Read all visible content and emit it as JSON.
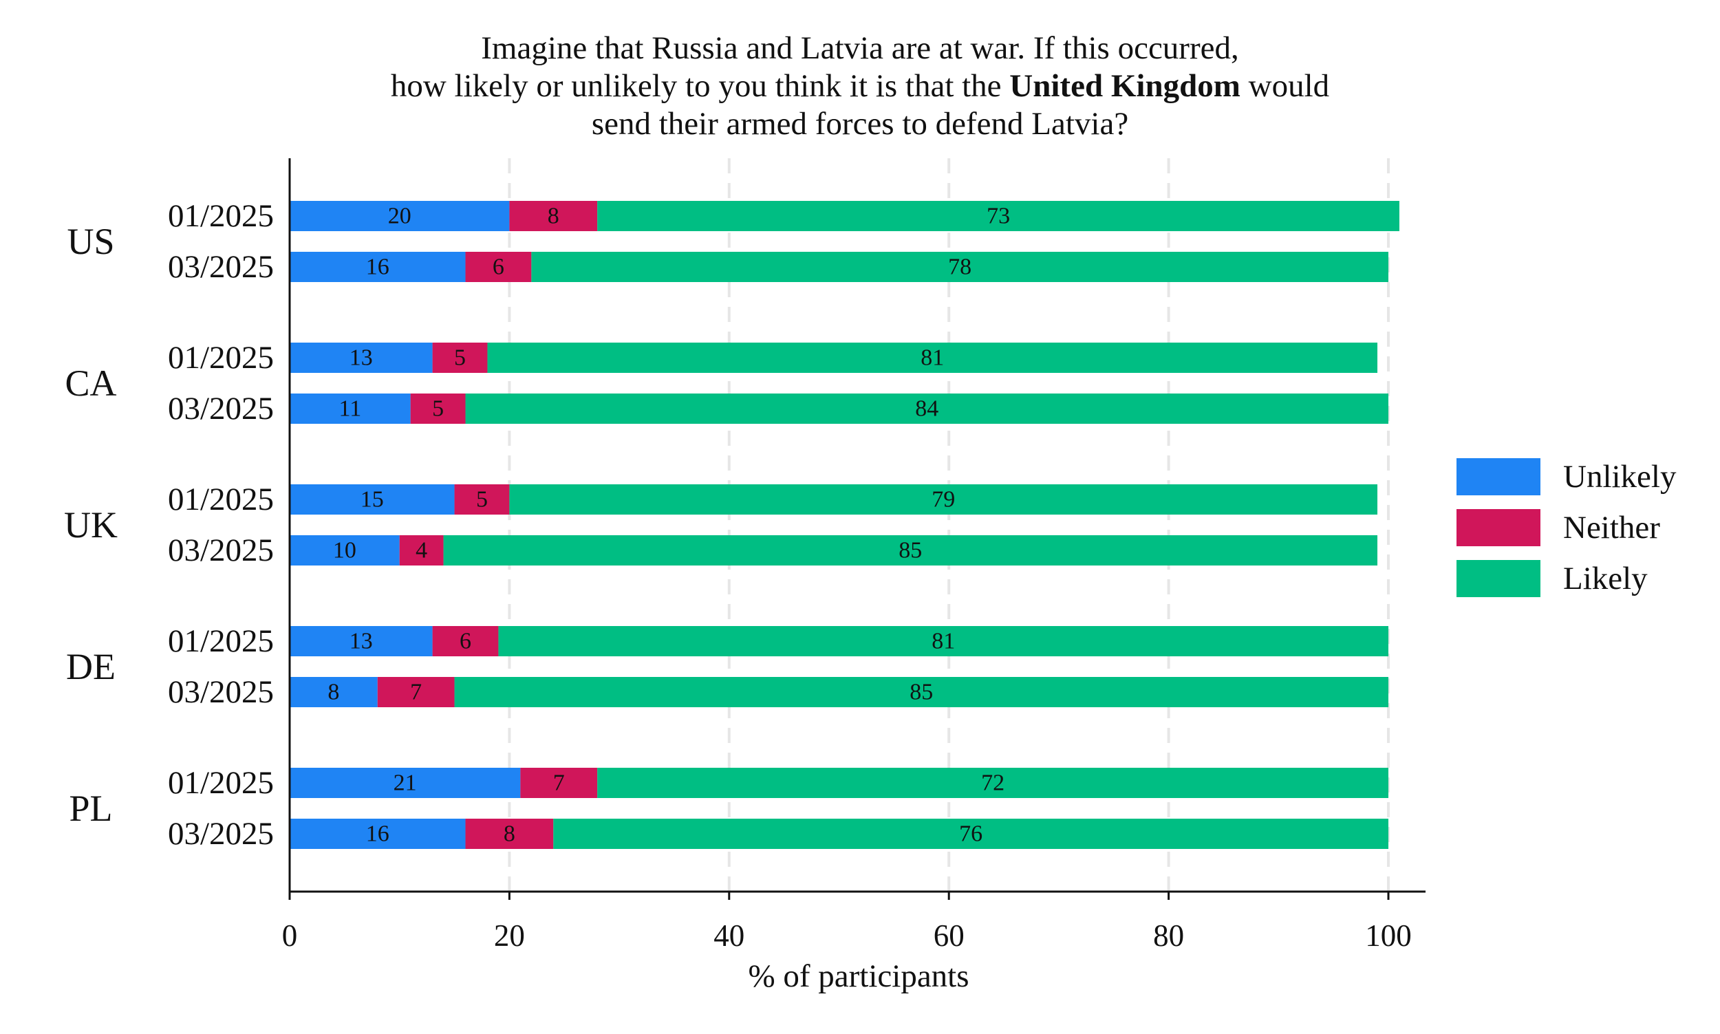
{
  "chart_data": {
    "type": "bar",
    "orientation": "horizontal",
    "stacked": true,
    "title": {
      "line1": "Imagine that Russia and Latvia are at war. If this occurred,",
      "line2_pre": "how likely or unlikely to you think it is that the",
      "line2_bold": "United Kingdom",
      "line2_post": "would",
      "line3": "send their armed forces to defend Latvia?"
    },
    "xlabel": "% of participants",
    "xlim": [
      0,
      100
    ],
    "xticks": [
      "0",
      "20",
      "40",
      "60",
      "80",
      "100"
    ],
    "grid": "vertical dashed",
    "legend_position": "right",
    "series": [
      {
        "name": "Unlikely",
        "color": "#1f84f4"
      },
      {
        "name": "Neither",
        "color": "#d0165a"
      },
      {
        "name": "Likely",
        "color": "#00be83"
      }
    ],
    "groups": [
      {
        "country": "US",
        "rows": [
          {
            "wave": "01/2025",
            "values": [
              20,
              8,
              73
            ],
            "labels": [
              "20",
              "8",
              "73"
            ]
          },
          {
            "wave": "03/2025",
            "values": [
              16,
              6,
              78
            ],
            "labels": [
              "16",
              "6",
              "78"
            ]
          }
        ]
      },
      {
        "country": "CA",
        "rows": [
          {
            "wave": "01/2025",
            "values": [
              13,
              5,
              81
            ],
            "labels": [
              "13",
              "5",
              "81"
            ]
          },
          {
            "wave": "03/2025",
            "values": [
              11,
              5,
              84
            ],
            "labels": [
              "11",
              "5",
              "84"
            ]
          }
        ]
      },
      {
        "country": "UK",
        "rows": [
          {
            "wave": "01/2025",
            "values": [
              15,
              5,
              79
            ],
            "labels": [
              "15",
              "5",
              "79"
            ]
          },
          {
            "wave": "03/2025",
            "values": [
              10,
              4,
              85
            ],
            "labels": [
              "10",
              "4",
              "85"
            ]
          }
        ]
      },
      {
        "country": "DE",
        "rows": [
          {
            "wave": "01/2025",
            "values": [
              13,
              6,
              81
            ],
            "labels": [
              "13",
              "6",
              "81"
            ]
          },
          {
            "wave": "03/2025",
            "values": [
              8,
              7,
              85
            ],
            "labels": [
              "8",
              "7",
              "85"
            ]
          }
        ]
      },
      {
        "country": "PL",
        "rows": [
          {
            "wave": "01/2025",
            "values": [
              21,
              7,
              72
            ],
            "labels": [
              "21",
              "7",
              "72"
            ]
          },
          {
            "wave": "03/2025",
            "values": [
              16,
              8,
              76
            ],
            "labels": [
              "16",
              "8",
              "76"
            ]
          }
        ]
      }
    ]
  }
}
